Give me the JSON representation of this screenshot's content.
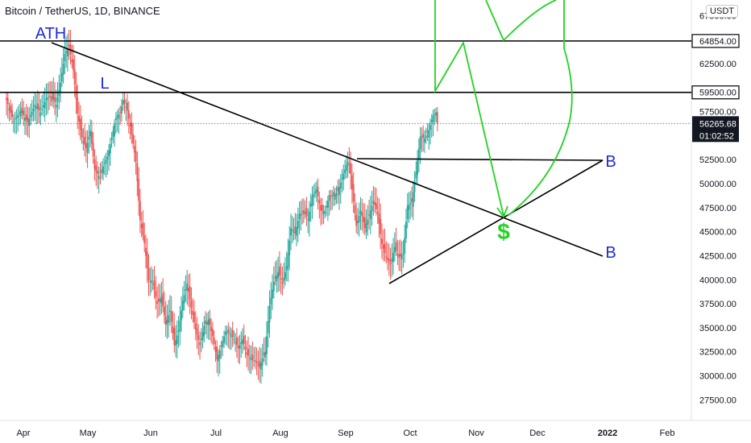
{
  "header": {
    "title": "Bitcoin / TetherUS, 1D, BINANCE",
    "currency": "USDT"
  },
  "chart_data": {
    "type": "candlestick",
    "title": "Bitcoin / TetherUS, 1D, BINANCE",
    "y_axis": {
      "ticks": [
        "27500.00",
        "30000.00",
        "32500.00",
        "35000.00",
        "37500.00",
        "40000.00",
        "42500.00",
        "45000.00",
        "47500.00",
        "50000.00",
        "52500.00",
        "55000.00",
        "57500.00",
        "62500.00",
        "67500.00"
      ],
      "ylim": [
        25000,
        69500
      ]
    },
    "x_axis": {
      "ticks": [
        "Apr",
        "May",
        "Jun",
        "Jul",
        "Aug",
        "Sep",
        "Oct",
        "Nov",
        "Dec",
        "2022",
        "Feb"
      ],
      "bold_ticks": [
        "2022"
      ]
    },
    "price_levels": [
      {
        "value": 64854,
        "label": "64854.00"
      },
      {
        "value": 59500,
        "label": "59500.00"
      }
    ],
    "current_price": {
      "value": 56265.68,
      "label": "56265.68",
      "countdown": "01:02:52"
    },
    "price_path": [
      [
        0,
        58700
      ],
      [
        5,
        56500
      ],
      [
        10,
        57600
      ],
      [
        15,
        56400
      ],
      [
        20,
        58200
      ],
      [
        24,
        57400
      ],
      [
        28,
        58900
      ],
      [
        32,
        59100
      ],
      [
        35,
        58200
      ],
      [
        38,
        60500
      ],
      [
        41,
        63500
      ],
      [
        44,
        64300
      ],
      [
        47,
        61800
      ],
      [
        50,
        57300
      ],
      [
        53,
        54800
      ],
      [
        56,
        53700
      ],
      [
        59,
        55500
      ],
      [
        62,
        51500
      ],
      [
        65,
        50800
      ],
      [
        68,
        51800
      ],
      [
        71,
        52800
      ],
      [
        74,
        54800
      ],
      [
        77,
        56900
      ],
      [
        80,
        57400
      ],
      [
        82,
        58700
      ],
      [
        85,
        57600
      ],
      [
        88,
        55100
      ],
      [
        91,
        52300
      ],
      [
        94,
        46200
      ],
      [
        97,
        43800
      ],
      [
        100,
        39900
      ],
      [
        103,
        39600
      ],
      [
        106,
        37500
      ],
      [
        109,
        38200
      ],
      [
        112,
        35300
      ],
      [
        115,
        36800
      ],
      [
        118,
        33200
      ],
      [
        121,
        34700
      ],
      [
        124,
        37800
      ],
      [
        127,
        39600
      ],
      [
        130,
        37100
      ],
      [
        133,
        34800
      ],
      [
        136,
        33200
      ],
      [
        139,
        35200
      ],
      [
        142,
        35800
      ],
      [
        145,
        34100
      ],
      [
        148,
        31700
      ],
      [
        151,
        33100
      ],
      [
        154,
        34600
      ],
      [
        157,
        34400
      ],
      [
        160,
        33800
      ],
      [
        163,
        32900
      ],
      [
        166,
        33800
      ],
      [
        169,
        32200
      ],
      [
        172,
        31800
      ],
      [
        175,
        31500
      ],
      [
        178,
        30900
      ],
      [
        180,
        31800
      ],
      [
        182,
        32500
      ],
      [
        185,
        37300
      ],
      [
        188,
        39800
      ],
      [
        191,
        40800
      ],
      [
        194,
        39600
      ],
      [
        197,
        41400
      ],
      [
        200,
        45400
      ],
      [
        203,
        44800
      ],
      [
        206,
        46800
      ],
      [
        209,
        47200
      ],
      [
        212,
        46300
      ],
      [
        215,
        48700
      ],
      [
        218,
        49400
      ],
      [
        221,
        47200
      ],
      [
        224,
        47100
      ],
      [
        227,
        48800
      ],
      [
        230,
        48700
      ],
      [
        233,
        49200
      ],
      [
        236,
        50600
      ],
      [
        239,
        51900
      ],
      [
        241,
        52600
      ],
      [
        243,
        49400
      ],
      [
        246,
        45600
      ],
      [
        249,
        47200
      ],
      [
        252,
        45400
      ],
      [
        255,
        46700
      ],
      [
        258,
        48200
      ],
      [
        261,
        46900
      ],
      [
        264,
        43700
      ],
      [
        267,
        42300
      ],
      [
        270,
        41600
      ],
      [
        273,
        43400
      ],
      [
        276,
        42300
      ],
      [
        279,
        42700
      ],
      [
        282,
        47700
      ],
      [
        285,
        48100
      ],
      [
        288,
        51200
      ],
      [
        291,
        54900
      ],
      [
        294,
        54700
      ],
      [
        297,
        55600
      ],
      [
        300,
        57100
      ],
      [
        302,
        57400
      ],
      [
        303,
        56266
      ]
    ],
    "annotations": [
      {
        "label": "ATH",
        "type": "text"
      },
      {
        "label": "L",
        "type": "text"
      },
      {
        "label": "B",
        "type": "text"
      },
      {
        "label": "B",
        "type": "text"
      },
      {
        "label": "$",
        "type": "text"
      }
    ],
    "drawings": [
      "descending trendline from ATH",
      "horizontal resistance ~52600",
      "rising support from ~39600",
      "green projection arrows"
    ],
    "grid": false
  },
  "colors": {
    "up": "#26a69a",
    "down": "#ef5350",
    "ann_blue": "#1e2bd6",
    "ann_green": "#22d322",
    "current_price_box": "#131722"
  }
}
